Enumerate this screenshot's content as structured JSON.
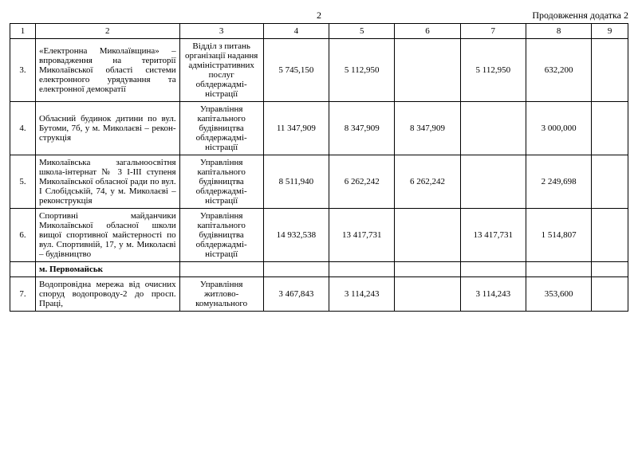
{
  "page_number": "2",
  "continuation_label": "Продовження додатка 2",
  "header": [
    "1",
    "2",
    "3",
    "4",
    "5",
    "6",
    "7",
    "8",
    "9"
  ],
  "rows": [
    {
      "n": "3.",
      "desc": "«Електронна Миколаїв­щина» – впровадження на території Миколаївської області системи електрон­ного урядування та електронної демократії",
      "dept": "Відділ з питань організації надання адмі­ністративних послуг облдержадмі­ністрації",
      "c4": "5 745,150",
      "c5": "5 112,950",
      "c6": "",
      "c7": "5 112,950",
      "c8": "632,200",
      "c9": ""
    },
    {
      "n": "4.",
      "desc": "Обласний будинок дитини по вул. Бутоми, 7б, у м. Миколаєві – рекон­струкція",
      "dept": "Управління капітального будівництва облдержадмі­ністрації",
      "c4": "11 347,909",
      "c5": "8 347,909",
      "c6": "8 347,909",
      "c7": "",
      "c8": "3 000,000",
      "c9": ""
    },
    {
      "n": "5.",
      "desc": "Миколаївська загальноосвітня школа-інтернат № 3 І-ІІІ ступеня Миколаївської обласної ради по вул. І Слобід­ській, 74, у м. Миколаєві – реконструкція",
      "dept": "Управління капітального будівництва облдержадмі­ністрації",
      "c4": "8 511,940",
      "c5": "6 262,242",
      "c6": "6 262,242",
      "c7": "",
      "c8": "2 249,698",
      "c9": ""
    },
    {
      "n": "6.",
      "desc": "Спортивні майданчики Миколаївської обласної школи вищої спортивної майстерності по вул. Спортивній, 17, у м. Миколаєві – будів­ництво",
      "dept": "Управління капітального будівництва облдержадмі­ністрації",
      "c4": "14 932,538",
      "c5": "13 417,731",
      "c6": "",
      "c7": "13 417,731",
      "c8": "1 514,807",
      "c9": ""
    },
    {
      "type": "section",
      "desc": "м. Первомайськ"
    },
    {
      "n": "7.",
      "desc": "Водопровідна мережа від очисних споруд водопро­воду-2 до просп. Праці,",
      "dept": "Управління житлово-комунального",
      "c4": "3 467,843",
      "c5": "3 114,243",
      "c6": "",
      "c7": "3 114,243",
      "c8": "353,600",
      "c9": ""
    }
  ]
}
